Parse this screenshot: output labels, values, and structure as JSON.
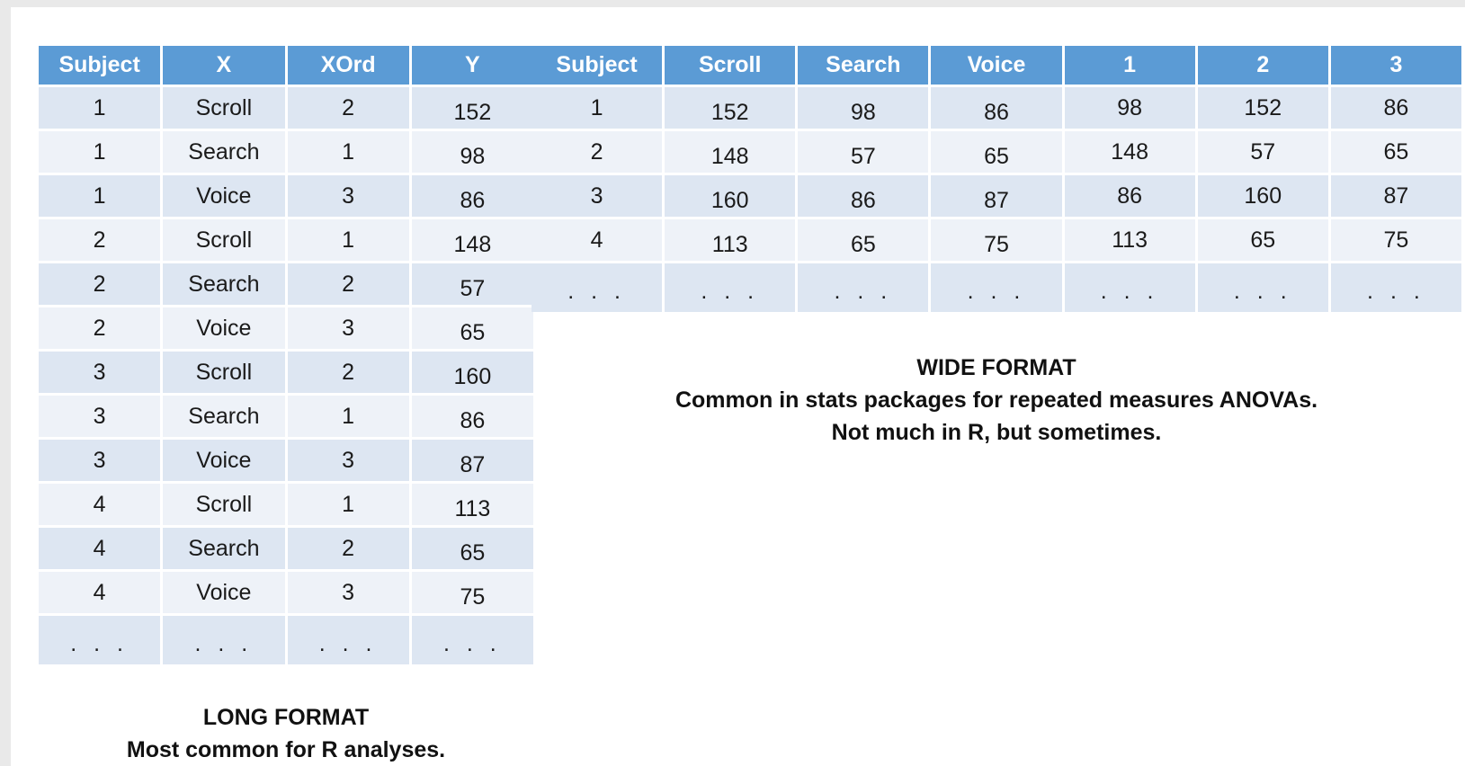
{
  "long_format": {
    "headers": [
      "Subject",
      "X",
      "XOrd",
      "Y"
    ],
    "rows": [
      [
        "1",
        "Scroll",
        "2",
        "152"
      ],
      [
        "1",
        "Search",
        "1",
        "98"
      ],
      [
        "1",
        "Voice",
        "3",
        "86"
      ],
      [
        "2",
        "Scroll",
        "1",
        "148"
      ],
      [
        "2",
        "Search",
        "2",
        "57"
      ],
      [
        "2",
        "Voice",
        "3",
        "65"
      ],
      [
        "3",
        "Scroll",
        "2",
        "160"
      ],
      [
        "3",
        "Search",
        "1",
        "86"
      ],
      [
        "3",
        "Voice",
        "3",
        "87"
      ],
      [
        "4",
        "Scroll",
        "1",
        "113"
      ],
      [
        "4",
        "Search",
        "2",
        "65"
      ],
      [
        "4",
        "Voice",
        "3",
        "75"
      ],
      [
        ". . .",
        ". . .",
        ". . .",
        ". . ."
      ]
    ],
    "caption_title": "LONG FORMAT",
    "caption_text": "Most common for R analyses."
  },
  "wide_format": {
    "headers": [
      "Subject",
      "Scroll",
      "Search",
      "Voice",
      "1",
      "2",
      "3"
    ],
    "rows": [
      [
        "1",
        "152",
        "98",
        "86",
        "98",
        "152",
        "86"
      ],
      [
        "2",
        "148",
        "57",
        "65",
        "148",
        "57",
        "65"
      ],
      [
        "3",
        "160",
        "86",
        "87",
        "86",
        "160",
        "87"
      ],
      [
        "4",
        "113",
        "65",
        "75",
        "113",
        "65",
        "75"
      ],
      [
        ". . .",
        ". . .",
        ". . .",
        ". . .",
        ". . .",
        ". . .",
        ". . ."
      ]
    ],
    "caption_title": "WIDE FORMAT",
    "caption_line1": "Common in stats packages for repeated measures ANOVAs.",
    "caption_line2": "Not much in R, but sometimes."
  }
}
